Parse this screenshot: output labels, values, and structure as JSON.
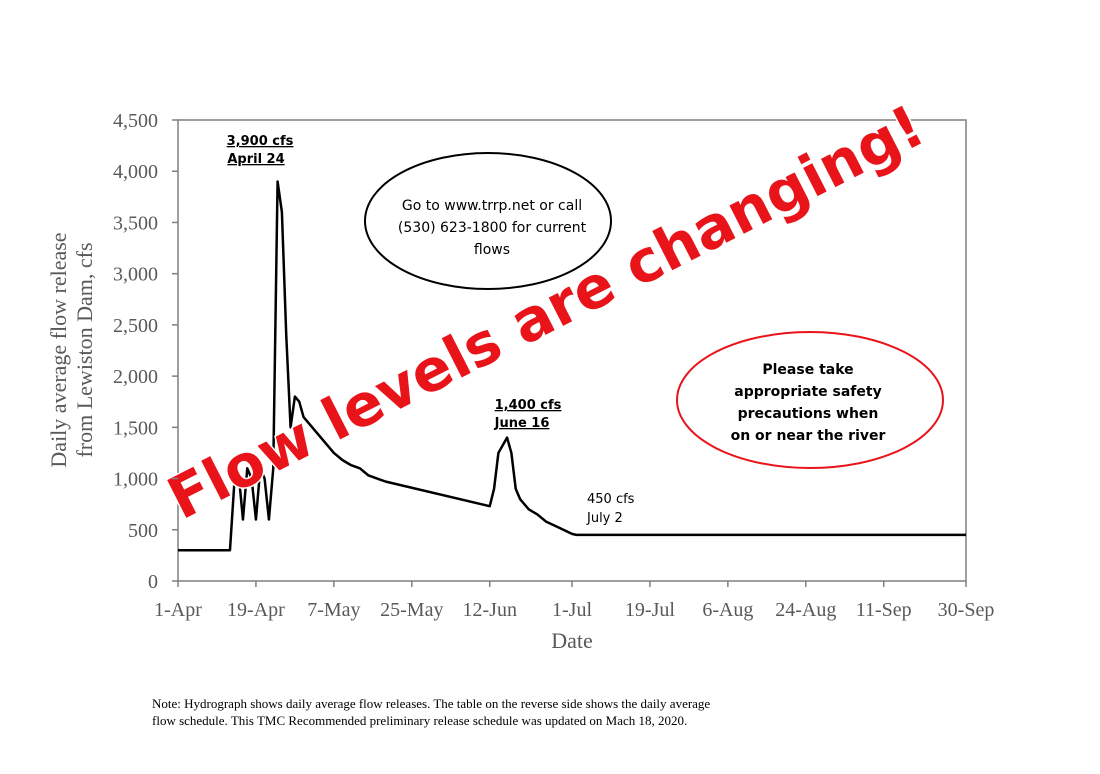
{
  "chart_data": {
    "type": "line",
    "ylabel": [
      "Daily average flow release",
      "from Lewiston Dam, cfs"
    ],
    "xlabel": "Date",
    "xlim": [
      "1-Apr",
      "30-Sep"
    ],
    "xticks": [
      "1-Apr",
      "19-Apr",
      "7-May",
      "25-May",
      "12-Jun",
      "1-Jul",
      "19-Jul",
      "6-Aug",
      "24-Aug",
      "11-Sep",
      "30-Sep"
    ],
    "ylim": [
      0,
      4500
    ],
    "yticks": [
      0,
      500,
      {
        "value": 1000,
        "label": "1,000"
      },
      {
        "value": 1500,
        "label": "1,500"
      },
      {
        "value": 2000,
        "label": "2,000"
      },
      {
        "value": 2500,
        "label": "2,500"
      },
      {
        "value": 3000,
        "label": "3,000"
      },
      {
        "value": 3500,
        "label": "3,500"
      },
      {
        "value": 4000,
        "label": "4,000"
      },
      {
        "value": 4500,
        "label": "4,500"
      }
    ],
    "series": [
      {
        "color": "#000000",
        "x": [
          "1-Apr",
          "13-Apr",
          "14-Apr",
          "15-Apr",
          "16-Apr",
          "17-Apr",
          "18-Apr",
          "19-Apr",
          "20-Apr",
          "21-Apr",
          "22-Apr",
          "23-Apr",
          "24-Apr",
          "25-Apr",
          "26-Apr",
          "27-Apr",
          "28-Apr",
          "29-Apr",
          "30-Apr",
          "1-May",
          "3-May",
          "5-May",
          "7-May",
          "9-May",
          "11-May",
          "13-May",
          "15-May",
          "17-May",
          "19-May",
          "12-Jun",
          "13-Jun",
          "14-Jun",
          "16-Jun",
          "17-Jun",
          "18-Jun",
          "19-Jun",
          "21-Jun",
          "23-Jun",
          "25-Jun",
          "27-Jun",
          "29-Jun",
          "1-Jul",
          "2-Jul",
          "30-Sep"
        ],
        "values": [
          300,
          300,
          950,
          1050,
          600,
          1100,
          1000,
          600,
          1100,
          1000,
          600,
          1100,
          3900,
          3600,
          2400,
          1500,
          1800,
          1750,
          1600,
          1550,
          1450,
          1350,
          1250,
          1180,
          1130,
          1100,
          1030,
          1000,
          970,
          730,
          900,
          1250,
          1400,
          1250,
          900,
          800,
          700,
          650,
          580,
          540,
          500,
          460,
          450,
          450
        ]
      }
    ],
    "annotations": [
      {
        "text": [
          "3,900 cfs",
          "April 24"
        ]
      },
      {
        "text": [
          "1,400 cfs",
          "June 16"
        ]
      },
      {
        "text": [
          "450 cfs",
          "July 2"
        ]
      },
      {
        "text": [
          "Go to www.trrp.net or call",
          "(530) 623-1800 for current",
          "flows"
        ]
      },
      {
        "text": [
          "Please take",
          "appropriate safety",
          "precautions when",
          "on or near the river"
        ]
      },
      {
        "text": [
          "Flow levels are changing!"
        ]
      }
    ],
    "note": [
      "Note: Hydrograph shows daily average flow releases. The table on the reverse side shows the daily average",
      "flow schedule. This TMC Recommended preliminary release schedule was updated on Mach 18, 2020."
    ]
  }
}
